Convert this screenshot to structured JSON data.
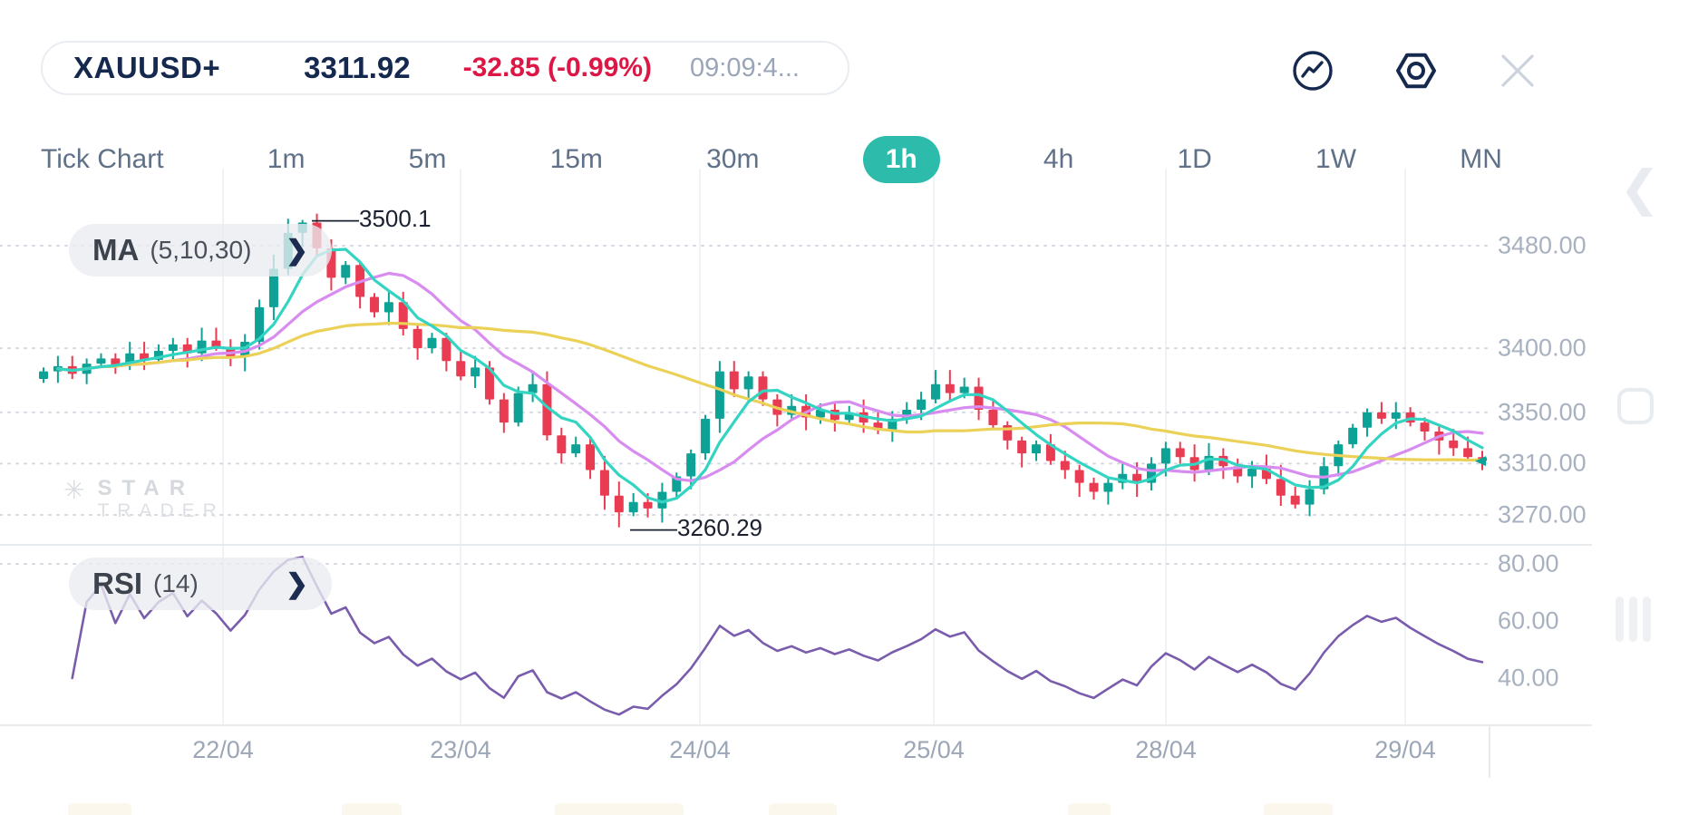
{
  "header": {
    "symbol": "XAUUSD+",
    "price": "3311.92",
    "change": "-32.85 (-0.99%)",
    "time": "09:09:4..."
  },
  "icons": {
    "chevron_right": "❯",
    "panel_chevron": "❮",
    "watermark_star": "✳"
  },
  "timeframes": [
    {
      "label": "Tick Chart",
      "active": false
    },
    {
      "label": "1m",
      "active": false
    },
    {
      "label": "5m",
      "active": false
    },
    {
      "label": "15m",
      "active": false
    },
    {
      "label": "30m",
      "active": false
    },
    {
      "label": "1h",
      "active": true
    },
    {
      "label": "4h",
      "active": false
    },
    {
      "label": "1D",
      "active": false
    },
    {
      "label": "1W",
      "active": false
    },
    {
      "label": "MN",
      "active": false
    }
  ],
  "pills": {
    "ma": {
      "name": "MA",
      "params": "(5,10,30)"
    },
    "rsi": {
      "name": "RSI",
      "params": "(14)"
    }
  },
  "annotations": {
    "high": "——3500.1",
    "low": "——3260.29"
  },
  "watermark": {
    "line1": "STAR",
    "line2": "TRADER"
  },
  "colors": {
    "accent": "#2dbcab",
    "bull": "#0da295",
    "bear": "#e93c53",
    "ma5": "#33d4c2",
    "ma10": "#d88cef",
    "ma30": "#ebd157",
    "rsi": "#7a5cad",
    "navy": "#15294e",
    "down_red": "#dc1745",
    "grid_dot": "#d4d8e0",
    "grid_vert": "#f0f2f6",
    "divider": "#e8ebee"
  },
  "chart_data": [
    {
      "type": "candlestick",
      "symbol": "XAUUSD+",
      "timeframe": "1h",
      "open_first": 3376,
      "closes": [
        3382,
        3386,
        3380,
        3388,
        3392,
        3387,
        3396,
        3391,
        3398,
        3403,
        3396,
        3406,
        3401,
        3393,
        3405,
        3432,
        3462,
        3490,
        3498,
        3478,
        3455,
        3465,
        3440,
        3428,
        3436,
        3415,
        3400,
        3408,
        3390,
        3378,
        3385,
        3360,
        3342,
        3365,
        3372,
        3332,
        3318,
        3325,
        3305,
        3285,
        3272,
        3280,
        3275,
        3288,
        3300,
        3318,
        3345,
        3382,
        3368,
        3378,
        3360,
        3348,
        3355,
        3346,
        3352,
        3344,
        3350,
        3342,
        3336,
        3345,
        3352,
        3360,
        3372,
        3365,
        3370,
        3352,
        3340,
        3328,
        3318,
        3325,
        3312,
        3305,
        3295,
        3288,
        3295,
        3302,
        3295,
        3310,
        3322,
        3315,
        3305,
        3316,
        3308,
        3300,
        3306,
        3298,
        3285,
        3278,
        3290,
        3308,
        3325,
        3338,
        3350,
        3345,
        3350,
        3342,
        3335,
        3328,
        3322,
        3315,
        3311.92
      ],
      "high_point": {
        "index": 18,
        "value": 3500.1
      },
      "low_point": {
        "index": 40,
        "value": 3260.29
      },
      "last_price": 3311.92,
      "ma_periods": [
        5,
        10,
        30
      ],
      "y_ticks": [
        {
          "label": "3480.00",
          "value": 3480
        },
        {
          "label": "3400.00",
          "value": 3400
        },
        {
          "label": "3350.00",
          "value": 3350
        },
        {
          "label": "3310.00",
          "value": 3310
        },
        {
          "label": "3270.00",
          "value": 3270
        }
      ],
      "x_ticks": [
        {
          "label": "22/04"
        },
        {
          "label": "23/04"
        },
        {
          "label": "24/04"
        },
        {
          "label": "25/04"
        },
        {
          "label": "28/04"
        },
        {
          "label": "29/04"
        }
      ]
    },
    {
      "type": "line",
      "name": "RSI",
      "period": 14,
      "overbought_line": 80,
      "y_ticks": [
        {
          "label": "80.00",
          "value": 80
        },
        {
          "label": "60.00",
          "value": 60
        },
        {
          "label": "40.00",
          "value": 40
        }
      ]
    }
  ]
}
